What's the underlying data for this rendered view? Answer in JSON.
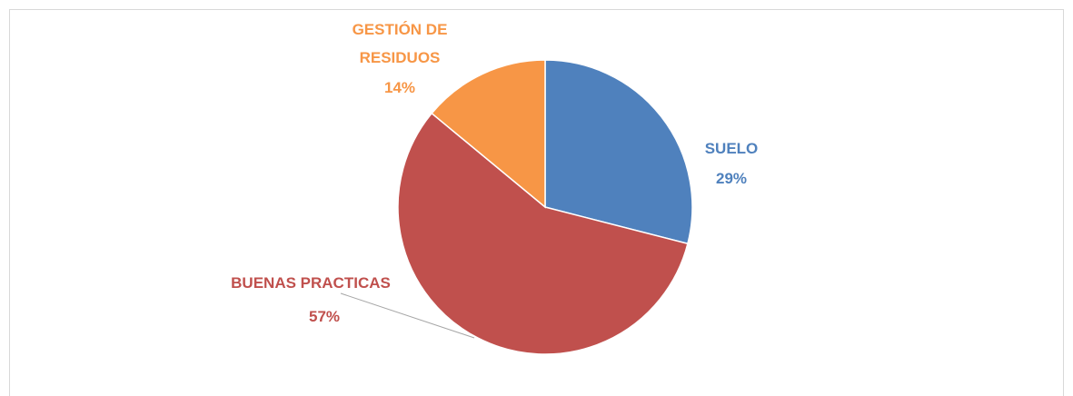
{
  "chart_data": {
    "type": "pie",
    "categories": [
      "SUELO",
      "BUENAS PRACTICAS",
      "GESTIÓN DE RESIDUOS"
    ],
    "values": [
      29,
      57,
      14
    ],
    "value_labels": [
      "29%",
      "57%",
      "14%"
    ],
    "colors": [
      "#4f81bd",
      "#c0504d",
      "#f79646"
    ]
  }
}
